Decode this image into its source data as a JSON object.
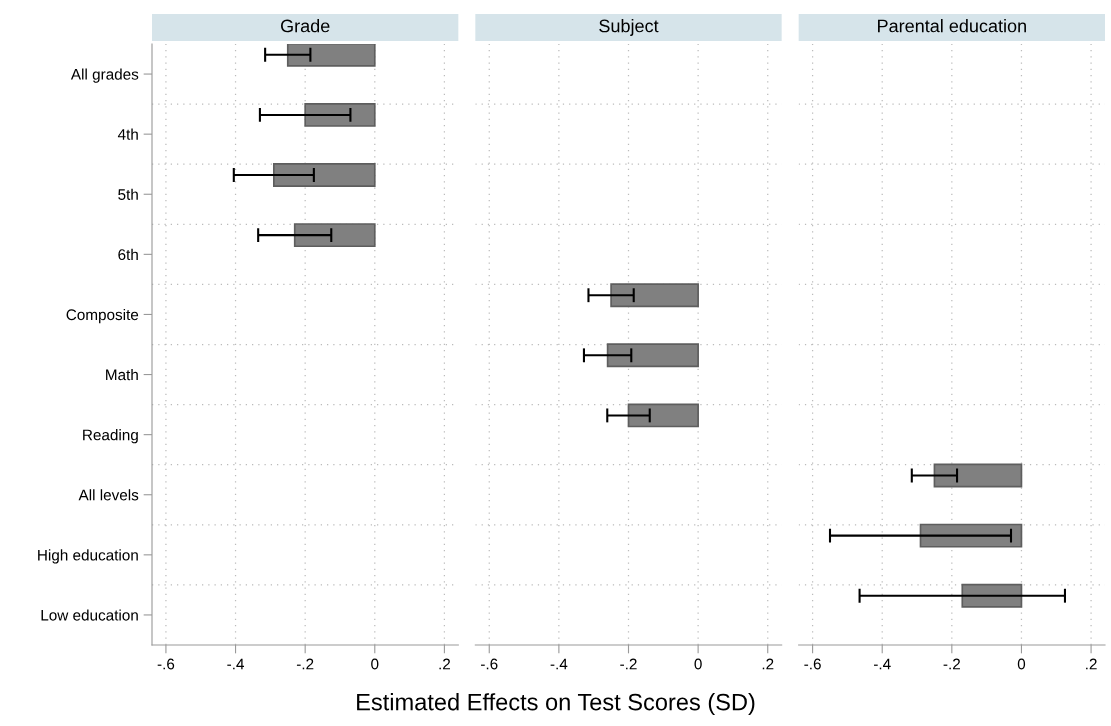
{
  "chart_data": [
    {
      "type": "bar",
      "orientation": "horizontal",
      "title": "Grade",
      "xlabel": "Estimated Effects on Test Scores (SD)",
      "categories": [
        "All grades",
        "4th",
        "5th",
        "6th",
        "Composite",
        "Math",
        "Reading",
        "All levels",
        "High education",
        "Low education"
      ],
      "series": [
        {
          "color": "#808080",
          "values": [
            -0.25,
            -0.2,
            -0.29,
            -0.23,
            null,
            null,
            null,
            null,
            null,
            null
          ],
          "errors": [
            0.065,
            0.13,
            0.115,
            0.105,
            null,
            null,
            null,
            null,
            null,
            null
          ]
        }
      ],
      "xlim": [
        -0.64,
        0.24
      ],
      "xticks": [
        {
          "value": -0.6,
          "label": "-.6"
        },
        {
          "value": -0.4,
          "label": "-.4"
        },
        {
          "value": -0.2,
          "label": "-.2"
        },
        0,
        {
          "value": 0.2,
          "label": ".2"
        }
      ],
      "grid": true
    },
    {
      "type": "bar",
      "orientation": "horizontal",
      "title": "Subject",
      "categories": [
        null,
        null,
        null,
        null,
        null,
        null,
        null,
        null,
        null,
        null
      ],
      "series": [
        {
          "color": "#808080",
          "values": [
            null,
            null,
            null,
            null,
            -0.25,
            -0.26,
            -0.2,
            null,
            null,
            null
          ],
          "errors": [
            null,
            null,
            null,
            null,
            0.065,
            0.068,
            0.061,
            null,
            null,
            null
          ]
        }
      ],
      "xlim": [
        -0.64,
        0.24
      ],
      "xticks": [
        {
          "value": -0.6,
          "label": "-.6"
        },
        {
          "value": -0.4,
          "label": "-.4"
        },
        {
          "value": -0.2,
          "label": "-.2"
        },
        0,
        {
          "value": 0.2,
          "label": ".2"
        }
      ],
      "grid": true,
      "tick_labels": "x"
    },
    {
      "type": "bar",
      "orientation": "horizontal",
      "title": "Parental education",
      "categories": [
        null,
        null,
        null,
        null,
        null,
        null,
        null,
        null,
        null,
        null
      ],
      "series": [
        {
          "color": "#808080",
          "values": [
            null,
            null,
            null,
            null,
            null,
            null,
            null,
            -0.25,
            -0.29,
            -0.17
          ],
          "errors": [
            null,
            null,
            null,
            null,
            null,
            null,
            null,
            0.065,
            0.26,
            0.295
          ]
        }
      ],
      "xlim": [
        -0.64,
        0.24
      ],
      "xticks": [
        {
          "value": -0.6,
          "label": "-.6"
        },
        {
          "value": -0.4,
          "label": "-.4"
        },
        {
          "value": -0.2,
          "label": "-.2"
        },
        0,
        {
          "value": 0.2,
          "label": ".2"
        }
      ],
      "grid": true,
      "tick_labels": "x"
    }
  ]
}
